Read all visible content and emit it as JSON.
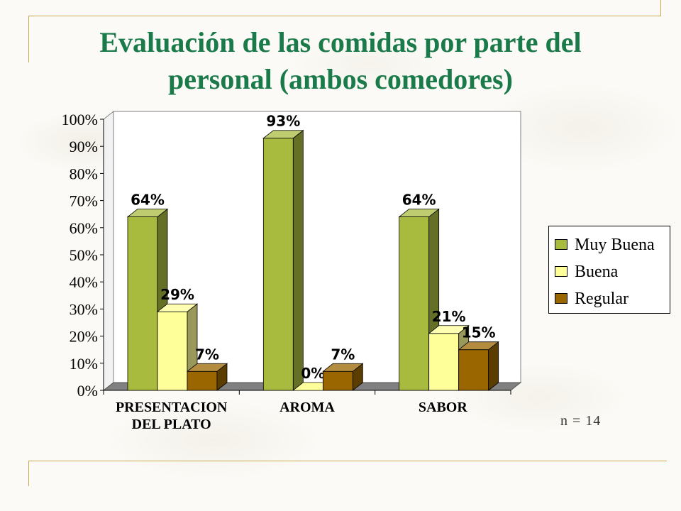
{
  "title": {
    "line1": "Evaluación de las comidas por parte del",
    "line2": "personal (ambos  comedores)"
  },
  "note": "n = 14",
  "legend": {
    "items": [
      {
        "label": "Muy Buena",
        "color": "#a9bb3f"
      },
      {
        "label": "Buena",
        "color": "#ffff99"
      },
      {
        "label": "Regular",
        "color": "#996600"
      }
    ]
  },
  "chart_data": {
    "type": "bar",
    "categories": [
      "PRESENTACION\nDEL PLATO",
      "AROMA",
      "SABOR"
    ],
    "series": [
      {
        "name": "Muy Buena",
        "values": [
          64,
          93,
          64
        ],
        "labels": [
          "64%",
          "93%",
          "64%"
        ],
        "color": "#a9bb3f"
      },
      {
        "name": "Buena",
        "values": [
          29,
          0,
          21
        ],
        "labels": [
          "29%",
          "0%",
          "21%"
        ],
        "color": "#ffff99"
      },
      {
        "name": "Regular",
        "values": [
          7,
          7,
          15
        ],
        "labels": [
          "7%",
          "7%",
          "15%"
        ],
        "color": "#996600"
      }
    ],
    "y_ticks": [
      "0%",
      "10%",
      "20%",
      "30%",
      "40%",
      "50%",
      "60%",
      "70%",
      "80%",
      "90%",
      "100%"
    ],
    "ylim": [
      0,
      100
    ],
    "legend_position": "right",
    "grid": false,
    "three_d": true
  }
}
